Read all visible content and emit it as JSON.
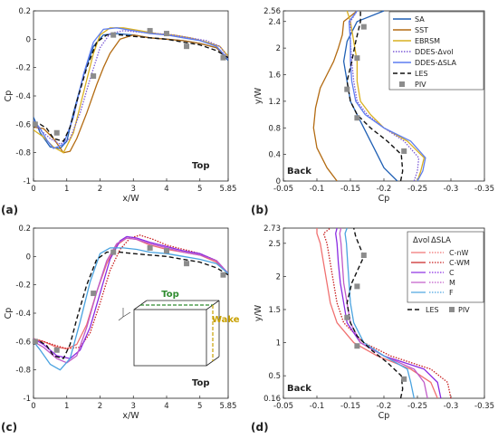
{
  "colors": {
    "SA": "#1f5fb4",
    "SST": "#b36b12",
    "EBRSM": "#d9b020",
    "DDES_vol": "#7b5ad6",
    "DDES_SLA": "#5d7df0",
    "LES": "#111111",
    "PIV": "#8c8c8c",
    "C_nW": "#f07070",
    "C_WM": "#c81e1e",
    "C": "#8a2be2",
    "M": "#c05ac8",
    "F": "#4aa3e0",
    "top_box": "#2e8b2e",
    "wake_box": "#c8a000"
  },
  "chart_data": [
    {
      "panel_label": "(a)",
      "type": "line",
      "xlabel": "x/W",
      "ylabel": "Cp",
      "xlim": [
        0,
        5.85
      ],
      "ylim": [
        -1,
        0.2
      ],
      "xticks": [
        "0",
        "1",
        "2",
        "3",
        "4",
        "5",
        "5.85"
      ],
      "yticks": [
        "-1",
        "-0.8",
        "-0.6",
        "-0.4",
        "-0.2",
        "0",
        "0.2"
      ],
      "annotation": "Top",
      "series": [
        {
          "name": "SA",
          "x": [
            0,
            0.2,
            0.5,
            0.8,
            1.0,
            1.2,
            1.5,
            1.8,
            2.1,
            2.5,
            3.0,
            3.5,
            4.0,
            4.5,
            5.0,
            5.5,
            5.85
          ],
          "y": [
            -0.55,
            -0.66,
            -0.76,
            -0.77,
            -0.72,
            -0.52,
            -0.26,
            -0.05,
            0.03,
            0.04,
            0.03,
            0.01,
            0.0,
            -0.01,
            -0.03,
            -0.06,
            -0.15
          ]
        },
        {
          "name": "SST",
          "x": [
            0,
            0.3,
            0.6,
            0.9,
            1.1,
            1.3,
            1.6,
            1.9,
            2.1,
            2.3,
            2.6,
            3.0,
            3.5,
            4.0,
            4.5,
            5.0,
            5.5,
            5.85
          ],
          "y": [
            -0.62,
            -0.63,
            -0.7,
            -0.8,
            -0.79,
            -0.7,
            -0.52,
            -0.32,
            -0.2,
            -0.1,
            0.0,
            0.03,
            0.01,
            0.0,
            -0.01,
            -0.03,
            -0.06,
            -0.14
          ]
        },
        {
          "name": "EBRSM",
          "x": [
            0,
            0.3,
            0.6,
            0.9,
            1.2,
            1.5,
            1.8,
            2.0,
            2.3,
            2.7,
            3.2,
            3.7,
            4.2,
            4.7,
            5.2,
            5.6,
            5.85
          ],
          "y": [
            -0.64,
            -0.69,
            -0.76,
            -0.8,
            -0.66,
            -0.38,
            -0.1,
            0.03,
            0.08,
            0.08,
            0.06,
            0.04,
            0.03,
            0.01,
            -0.02,
            -0.05,
            -0.12
          ]
        },
        {
          "name": "DDES-Δvol",
          "x": [
            0,
            0.2,
            0.5,
            0.8,
            1.1,
            1.4,
            1.7,
            2.0,
            2.3,
            2.7,
            3.2,
            3.7,
            4.2,
            4.7,
            5.2,
            5.6,
            5.85
          ],
          "y": [
            -0.59,
            -0.64,
            -0.7,
            -0.74,
            -0.7,
            -0.52,
            -0.28,
            -0.06,
            0.04,
            0.06,
            0.05,
            0.04,
            0.03,
            0.01,
            -0.01,
            -0.05,
            -0.13
          ]
        },
        {
          "name": "DDES-ΔSLA",
          "x": [
            0,
            0.2,
            0.4,
            0.6,
            0.9,
            1.2,
            1.5,
            1.8,
            2.1,
            2.5,
            3.0,
            3.5,
            4.0,
            4.5,
            5.0,
            5.5,
            5.85
          ],
          "y": [
            -0.57,
            -0.63,
            -0.71,
            -0.77,
            -0.74,
            -0.55,
            -0.25,
            -0.02,
            0.07,
            0.08,
            0.06,
            0.04,
            0.03,
            0.01,
            -0.01,
            -0.05,
            -0.14
          ]
        },
        {
          "name": "LES",
          "x": [
            0,
            0.2,
            0.4,
            0.6,
            0.9,
            1.1,
            1.3,
            1.6,
            1.9,
            2.2,
            2.6,
            3.0,
            3.5,
            4.0,
            4.5,
            5.0,
            5.5,
            5.85
          ],
          "y": [
            -0.62,
            -0.6,
            -0.63,
            -0.7,
            -0.72,
            -0.62,
            -0.44,
            -0.2,
            -0.02,
            0.03,
            0.03,
            0.02,
            0.01,
            0.0,
            -0.02,
            -0.04,
            -0.08,
            -0.13
          ]
        }
      ],
      "markers": {
        "name": "PIV",
        "x": [
          0.05,
          0.7,
          1.8,
          2.4,
          3.5,
          4.0,
          4.6,
          5.7
        ],
        "y": [
          -0.6,
          -0.66,
          -0.26,
          0.03,
          0.06,
          0.04,
          -0.05,
          -0.13
        ]
      }
    },
    {
      "panel_label": "(b)",
      "type": "line",
      "xlabel": "Cp",
      "ylabel": "y/W",
      "xlim": [
        -0.05,
        -0.35
      ],
      "ylim": [
        0,
        2.56
      ],
      "xticks": [
        "-0.05",
        "-0.1",
        "-0.15",
        "-0.2",
        "-0.25",
        "-0.3",
        "-0.35"
      ],
      "yticks": [
        "0",
        "0.4",
        "0.8",
        "1.2",
        "1.6",
        "2",
        "2.4",
        "2.56"
      ],
      "annotation": "Back",
      "legend_position": "top-right",
      "series": [
        {
          "name": "SA",
          "x": [
            -0.22,
            -0.2,
            -0.19,
            -0.18,
            -0.17,
            -0.16,
            -0.15,
            -0.145,
            -0.14,
            -0.145,
            -0.16,
            -0.2
          ],
          "y": [
            0,
            0.2,
            0.4,
            0.6,
            0.8,
            1.0,
            1.2,
            1.5,
            1.8,
            2.1,
            2.4,
            2.56
          ]
        },
        {
          "name": "SST",
          "x": [
            -0.13,
            -0.115,
            -0.1,
            -0.095,
            -0.098,
            -0.105,
            -0.115,
            -0.125,
            -0.132,
            -0.138,
            -0.14,
            -0.16
          ],
          "y": [
            0,
            0.2,
            0.5,
            0.8,
            1.1,
            1.4,
            1.6,
            1.8,
            2.0,
            2.2,
            2.4,
            2.56
          ]
        },
        {
          "name": "EBRSM",
          "x": [
            -0.25,
            -0.255,
            -0.26,
            -0.235,
            -0.2,
            -0.18,
            -0.165,
            -0.16,
            -0.16,
            -0.155,
            -0.15,
            -0.145
          ],
          "y": [
            0,
            0.15,
            0.35,
            0.6,
            0.8,
            1.0,
            1.2,
            1.5,
            1.8,
            2.1,
            2.4,
            2.56
          ]
        },
        {
          "name": "DDES-Δvol",
          "x": [
            -0.245,
            -0.25,
            -0.252,
            -0.23,
            -0.2,
            -0.175,
            -0.16,
            -0.155,
            -0.152,
            -0.15,
            -0.15,
            -0.16
          ],
          "y": [
            0,
            0.15,
            0.35,
            0.6,
            0.8,
            1.0,
            1.2,
            1.5,
            1.8,
            2.1,
            2.4,
            2.56
          ]
        },
        {
          "name": "DDES-ΔSLA",
          "x": [
            -0.25,
            -0.258,
            -0.262,
            -0.24,
            -0.2,
            -0.172,
            -0.158,
            -0.152,
            -0.15,
            -0.15,
            -0.148,
            -0.16
          ],
          "y": [
            0,
            0.15,
            0.35,
            0.6,
            0.8,
            1.0,
            1.2,
            1.5,
            1.8,
            2.1,
            2.4,
            2.56
          ]
        },
        {
          "name": "LES",
          "x": [
            -0.225,
            -0.228,
            -0.226,
            -0.205,
            -0.18,
            -0.16,
            -0.15,
            -0.145,
            -0.152,
            -0.158,
            -0.165,
            -0.165
          ],
          "y": [
            0,
            0.15,
            0.4,
            0.6,
            0.8,
            1.0,
            1.2,
            1.5,
            1.8,
            2.1,
            2.4,
            2.56
          ]
        }
      ],
      "markers": {
        "name": "PIV",
        "x": [
          -0.23,
          -0.16,
          -0.145,
          -0.16,
          -0.17
        ],
        "y": [
          0.45,
          0.95,
          1.38,
          1.85,
          2.32
        ]
      }
    },
    {
      "panel_label": "(c)",
      "type": "line",
      "xlabel": "x/W",
      "ylabel": "Cp",
      "xlim": [
        0,
        5.85
      ],
      "ylim": [
        -1,
        0.2
      ],
      "xticks": [
        "0",
        "1",
        "2",
        "3",
        "4",
        "5",
        "5.85"
      ],
      "yticks": [
        "-1",
        "-0.8",
        "-0.6",
        "-0.4",
        "-0.2",
        "0",
        "0.2"
      ],
      "annotation": "Top",
      "inset_labels": {
        "top": "Top",
        "wake": "Wake"
      },
      "series": [
        {
          "name": "C-nW",
          "x": [
            0,
            0.3,
            0.7,
            1.0,
            1.3,
            1.6,
            1.9,
            2.2,
            2.5,
            2.8,
            3.1,
            3.5,
            4.0,
            4.5,
            5.0,
            5.5,
            5.85
          ],
          "y": [
            -0.58,
            -0.6,
            -0.64,
            -0.65,
            -0.62,
            -0.48,
            -0.25,
            -0.05,
            0.08,
            0.13,
            0.12,
            0.08,
            0.05,
            0.03,
            0.01,
            -0.04,
            -0.12
          ]
        },
        {
          "name": "C-WM",
          "x": [
            0,
            0.3,
            0.7,
            1.0,
            1.4,
            1.7,
            2.0,
            2.3,
            2.6,
            2.9,
            3.2,
            3.6,
            4.0,
            4.5,
            5.0,
            5.5,
            5.85
          ],
          "y": [
            -0.58,
            -0.6,
            -0.63,
            -0.65,
            -0.64,
            -0.54,
            -0.33,
            -0.1,
            0.05,
            0.13,
            0.15,
            0.12,
            0.08,
            0.05,
            0.02,
            -0.03,
            -0.12
          ]
        },
        {
          "name": "C",
          "x": [
            0,
            0.3,
            0.7,
            1.1,
            1.4,
            1.7,
            2.0,
            2.3,
            2.6,
            2.8,
            3.1,
            3.5,
            4.0,
            4.5,
            5.0,
            5.5,
            5.85
          ],
          "y": [
            -0.58,
            -0.62,
            -0.7,
            -0.72,
            -0.66,
            -0.5,
            -0.26,
            -0.02,
            0.11,
            0.14,
            0.13,
            0.1,
            0.07,
            0.04,
            0.02,
            -0.03,
            -0.12
          ]
        },
        {
          "name": "M",
          "x": [
            0,
            0.3,
            0.7,
            1.0,
            1.3,
            1.6,
            1.9,
            2.2,
            2.5,
            2.8,
            3.1,
            3.5,
            4.0,
            4.5,
            5.0,
            5.5,
            5.85
          ],
          "y": [
            -0.6,
            -0.64,
            -0.72,
            -0.75,
            -0.7,
            -0.5,
            -0.25,
            -0.03,
            0.09,
            0.13,
            0.12,
            0.09,
            0.06,
            0.03,
            0.01,
            -0.03,
            -0.12
          ]
        },
        {
          "name": "F",
          "x": [
            0,
            0.2,
            0.5,
            0.8,
            1.1,
            1.4,
            1.7,
            2.0,
            2.3,
            2.7,
            3.1,
            3.5,
            4.0,
            4.5,
            5.0,
            5.5,
            5.85
          ],
          "y": [
            -0.6,
            -0.66,
            -0.76,
            -0.8,
            -0.72,
            -0.46,
            -0.18,
            0.02,
            0.06,
            0.06,
            0.05,
            0.03,
            0.02,
            0.0,
            -0.02,
            -0.05,
            -0.12
          ]
        },
        {
          "name": "LES",
          "x": [
            0,
            0.2,
            0.4,
            0.6,
            0.9,
            1.1,
            1.3,
            1.6,
            1.9,
            2.2,
            2.6,
            3.0,
            3.5,
            4.0,
            4.5,
            5.0,
            5.5,
            5.85
          ],
          "y": [
            -0.62,
            -0.6,
            -0.63,
            -0.7,
            -0.72,
            -0.62,
            -0.44,
            -0.2,
            -0.02,
            0.03,
            0.03,
            0.02,
            0.01,
            0.0,
            -0.02,
            -0.04,
            -0.08,
            -0.13
          ]
        }
      ],
      "markers": {
        "name": "PIV",
        "x": [
          0.05,
          0.7,
          1.8,
          2.4,
          3.5,
          4.0,
          4.6,
          5.7
        ],
        "y": [
          -0.6,
          -0.66,
          -0.26,
          0.03,
          0.06,
          0.04,
          -0.05,
          -0.13
        ]
      }
    },
    {
      "panel_label": "(d)",
      "type": "line",
      "xlabel": "Cp",
      "ylabel": "y/W",
      "xlim": [
        -0.05,
        -0.35
      ],
      "ylim": [
        0.16,
        2.73
      ],
      "xticks": [
        "-0.05",
        "-0.1",
        "-0.15",
        "-0.2",
        "-0.25",
        "-0.3",
        "-0.35"
      ],
      "yticks": [
        "0.16",
        "0.5",
        "1",
        "1.5",
        "2",
        "2.5",
        "2.73"
      ],
      "annotation": "Back",
      "legend_position": "top-right",
      "legend_headers": {
        "vol": "Δvol",
        "sla": "ΔSLA"
      },
      "series": [
        {
          "name": "C-nW",
          "x": [
            -0.28,
            -0.27,
            -0.24,
            -0.19,
            -0.155,
            -0.13,
            -0.12,
            -0.115,
            -0.11,
            -0.105,
            -0.1,
            -0.1
          ],
          "y": [
            0.16,
            0.4,
            0.6,
            0.8,
            1.0,
            1.3,
            1.6,
            1.9,
            2.2,
            2.5,
            2.65,
            2.73
          ]
        },
        {
          "name": "C-WM",
          "x": [
            -0.3,
            -0.295,
            -0.27,
            -0.21,
            -0.17,
            -0.14,
            -0.13,
            -0.125,
            -0.12,
            -0.115,
            -0.11,
            -0.12
          ],
          "y": [
            0.16,
            0.4,
            0.6,
            0.8,
            1.0,
            1.3,
            1.6,
            1.9,
            2.2,
            2.5,
            2.65,
            2.73
          ]
        },
        {
          "name": "C",
          "x": [
            -0.285,
            -0.28,
            -0.26,
            -0.2,
            -0.165,
            -0.145,
            -0.14,
            -0.135,
            -0.132,
            -0.13,
            -0.128,
            -0.13
          ],
          "y": [
            0.16,
            0.4,
            0.6,
            0.8,
            1.0,
            1.3,
            1.6,
            1.9,
            2.2,
            2.5,
            2.65,
            2.73
          ]
        },
        {
          "name": "M",
          "x": [
            -0.265,
            -0.26,
            -0.245,
            -0.2,
            -0.165,
            -0.15,
            -0.145,
            -0.14,
            -0.138,
            -0.136,
            -0.134,
            -0.136
          ],
          "y": [
            0.16,
            0.4,
            0.6,
            0.8,
            1.0,
            1.3,
            1.6,
            1.9,
            2.2,
            2.5,
            2.65,
            2.73
          ]
        },
        {
          "name": "F",
          "x": [
            -0.245,
            -0.24,
            -0.235,
            -0.2,
            -0.17,
            -0.155,
            -0.15,
            -0.148,
            -0.146,
            -0.144,
            -0.142,
            -0.145
          ],
          "y": [
            0.16,
            0.4,
            0.6,
            0.8,
            1.0,
            1.3,
            1.6,
            1.9,
            2.2,
            2.5,
            2.65,
            2.73
          ]
        },
        {
          "name": "LES",
          "x": [
            -0.225,
            -0.228,
            -0.226,
            -0.205,
            -0.18,
            -0.16,
            -0.15,
            -0.145,
            -0.152,
            -0.17,
            -0.158,
            -0.155
          ],
          "y": [
            0.16,
            0.3,
            0.5,
            0.7,
            0.9,
            1.1,
            1.3,
            1.6,
            1.9,
            2.3,
            2.6,
            2.73
          ]
        }
      ],
      "markers": {
        "name": "PIV",
        "x": [
          -0.23,
          -0.16,
          -0.145,
          -0.16,
          -0.17
        ],
        "y": [
          0.45,
          0.95,
          1.38,
          1.85,
          2.32
        ]
      }
    }
  ],
  "legend_b": [
    {
      "key": "SA",
      "label": "SA",
      "style": "solid"
    },
    {
      "key": "SST",
      "label": "SST",
      "style": "solid"
    },
    {
      "key": "EBRSM",
      "label": "EBRSM",
      "style": "solid"
    },
    {
      "key": "DDES_vol",
      "label": "DDES-Δvol",
      "style": "dotted"
    },
    {
      "key": "DDES_SLA",
      "label": "DDES-ΔSLA",
      "style": "solid"
    },
    {
      "key": "LES",
      "label": "LES",
      "style": "dashed"
    },
    {
      "key": "PIV",
      "label": "PIV",
      "style": "square"
    }
  ],
  "legend_d": [
    {
      "key": "C_nW",
      "label": "C-nW"
    },
    {
      "key": "C_WM",
      "label": "C-WM"
    },
    {
      "key": "C",
      "label": "C"
    },
    {
      "key": "M",
      "label": "M"
    },
    {
      "key": "F",
      "label": "F"
    }
  ],
  "legend_d_bottom": {
    "les": "LES",
    "piv": "PIV"
  }
}
